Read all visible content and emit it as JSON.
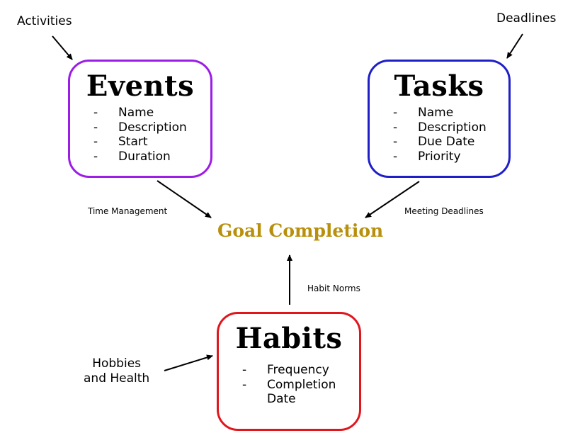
{
  "colors": {
    "events_border": "#9b1de6",
    "tasks_border": "#1f1fc8",
    "habits_border": "#e0161c",
    "goal_text": "#b8900c",
    "arrow": "#000000"
  },
  "events": {
    "title": "Events",
    "fields": [
      "Name",
      "Description",
      "Start",
      "Duration"
    ]
  },
  "tasks": {
    "title": "Tasks",
    "fields": [
      "Name",
      "Description",
      "Due Date",
      "Priority"
    ]
  },
  "habits": {
    "title": "Habits",
    "fields": [
      "Frequency",
      "Completion Date"
    ]
  },
  "goal": "Goal Completion",
  "inputs": {
    "activities": "Activities",
    "deadlines": "Deadlines",
    "hobbies_line1": "Hobbies",
    "hobbies_line2": "and Health"
  },
  "edge_labels": {
    "time_management": "Time Management",
    "meeting_deadlines": "Meeting Deadlines",
    "habit_norms": "Habit Norms"
  }
}
